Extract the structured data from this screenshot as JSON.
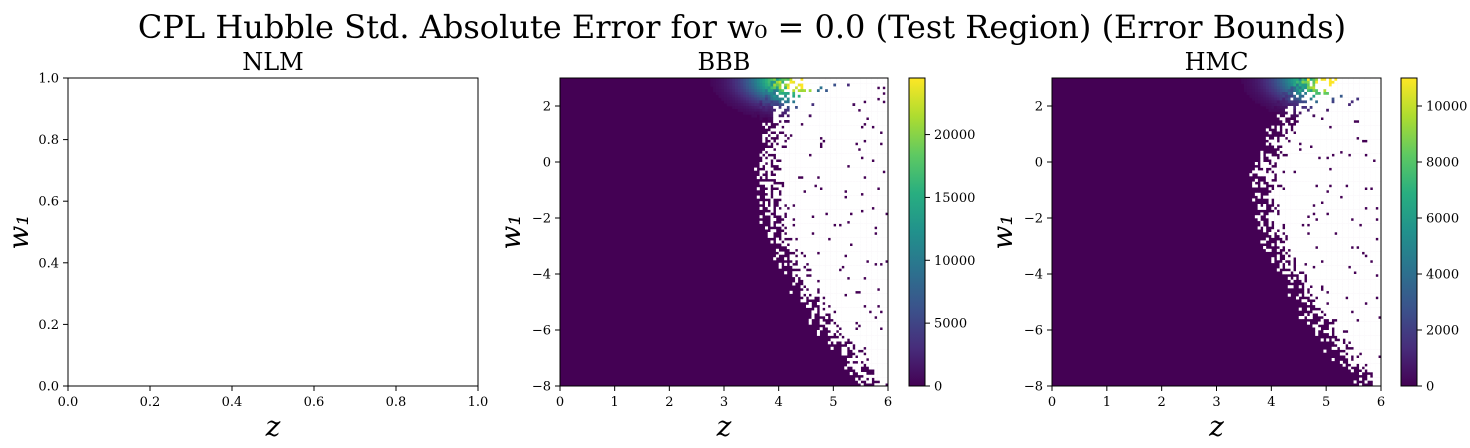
{
  "figure": {
    "title": "CPL Hubble Std. Absolute Error for w₀ = 0.0 (Test Region) (Error Bounds)"
  },
  "chart_data": [
    {
      "type": "heatmap",
      "title": "NLM",
      "xlabel": "z",
      "ylabel": "w₁",
      "xlim": [
        0.0,
        1.0
      ],
      "ylim": [
        0.0,
        1.0
      ],
      "xticks": [
        0.0,
        0.2,
        0.4,
        0.6,
        0.8,
        1.0
      ],
      "yticks": [
        0.0,
        0.2,
        0.4,
        0.6,
        0.8,
        1.0
      ],
      "xtick_labels": [
        "0.0",
        "0.2",
        "0.4",
        "0.6",
        "0.8",
        "1.0"
      ],
      "ytick_labels": [
        "0.0",
        "0.2",
        "0.4",
        "0.6",
        "0.8",
        "1.0"
      ],
      "empty": true
    },
    {
      "type": "heatmap",
      "title": "BBB",
      "xlabel": "z",
      "ylabel": "w₁",
      "xlim": [
        0,
        6
      ],
      "ylim": [
        -8,
        3
      ],
      "xticks": [
        0,
        1,
        2,
        3,
        4,
        5,
        6
      ],
      "yticks": [
        -8,
        -6,
        -4,
        -2,
        0,
        2
      ],
      "xtick_labels": [
        "0",
        "1",
        "2",
        "3",
        "4",
        "5",
        "6"
      ],
      "ytick_labels": [
        "−8",
        "−6",
        "−4",
        "−2",
        "0",
        "2"
      ],
      "colormap": "viridis",
      "colorbar": {
        "min": 0,
        "max": 24500,
        "ticks": [
          0,
          5000,
          10000,
          15000,
          20000
        ],
        "tick_labels": [
          "0",
          "5000",
          "10000",
          "15000",
          "20000"
        ]
      },
      "nan_boundary": {
        "w1": [
          3,
          2,
          1,
          0,
          -1,
          -2,
          -3,
          -4,
          -5,
          -6,
          -7,
          -8
        ],
        "z": [
          4.4,
          4.1,
          3.95,
          3.85,
          3.85,
          3.95,
          4.15,
          4.35,
          4.65,
          4.95,
          5.3,
          5.75
        ]
      },
      "peak": {
        "z": 4.3,
        "w1": 2.9,
        "value": 24500
      }
    },
    {
      "type": "heatmap",
      "title": "HMC",
      "xlabel": "z",
      "ylabel": "w₁",
      "xlim": [
        0,
        6
      ],
      "ylim": [
        -8,
        3
      ],
      "xticks": [
        0,
        1,
        2,
        3,
        4,
        5,
        6
      ],
      "yticks": [
        -8,
        -6,
        -4,
        -2,
        0,
        2
      ],
      "xtick_labels": [
        "0",
        "1",
        "2",
        "3",
        "4",
        "5",
        "6"
      ],
      "ytick_labels": [
        "−8",
        "−6",
        "−4",
        "−2",
        "0",
        "2"
      ],
      "colormap": "viridis",
      "colorbar": {
        "min": 0,
        "max": 11000,
        "ticks": [
          0,
          2000,
          4000,
          6000,
          8000,
          10000
        ],
        "tick_labels": [
          "0",
          "2000",
          "4000",
          "6000",
          "8000",
          "10000"
        ]
      },
      "nan_boundary": {
        "w1": [
          3,
          2,
          1,
          0,
          -1,
          -2,
          -3,
          -4,
          -5,
          -6,
          -7,
          -8
        ],
        "z": [
          5.0,
          4.5,
          4.15,
          3.95,
          3.9,
          3.95,
          4.15,
          4.4,
          4.7,
          5.0,
          5.4,
          5.85
        ]
      },
      "peak": {
        "z": 5.0,
        "w1": 2.95,
        "value": 11000
      }
    }
  ]
}
